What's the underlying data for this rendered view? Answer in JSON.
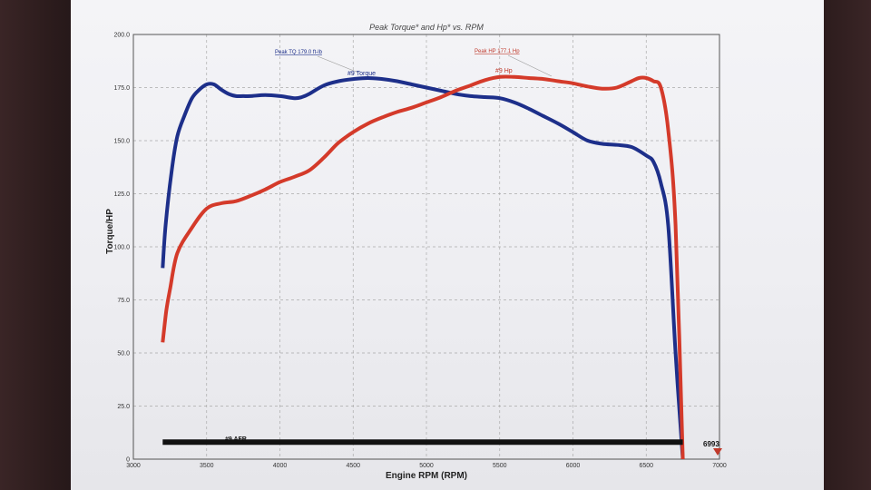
{
  "chart_data": {
    "type": "line",
    "title": "Peak Torque* and Hp* vs. RPM",
    "xlabel": "Engine RPM (RPM)",
    "ylabel": "Torque/HP",
    "xlim": [
      3000,
      7000
    ],
    "ylim": [
      0,
      200
    ],
    "x_ticks": [
      "3000",
      "3500",
      "4000",
      "4500",
      "5000",
      "5500",
      "6000",
      "6500",
      "7000"
    ],
    "y_ticks": [
      "0",
      "25.0",
      "50.0",
      "75.0",
      "100.0",
      "125.0",
      "150.0",
      "175.0",
      "200.0"
    ],
    "grid": true,
    "series": [
      {
        "name": "#9 Torque",
        "color": "#1d2f8a",
        "x": [
          3200,
          3220,
          3260,
          3300,
          3350,
          3400,
          3450,
          3500,
          3550,
          3600,
          3650,
          3700,
          3750,
          3800,
          3900,
          4000,
          4100,
          4150,
          4200,
          4300,
          4400,
          4500,
          4600,
          4700,
          4800,
          4900,
          5000,
          5100,
          5200,
          5300,
          5400,
          5500,
          5600,
          5700,
          5800,
          5900,
          6000,
          6100,
          6200,
          6300,
          6400,
          6500,
          6550,
          6600,
          6650,
          6700,
          6750
        ],
        "values": [
          90,
          110,
          135,
          152,
          162,
          170,
          174,
          176.5,
          176.5,
          174,
          172,
          171,
          171,
          171,
          171.5,
          171,
          170,
          170.5,
          172,
          176,
          178,
          179,
          179.5,
          179,
          178,
          176.5,
          175,
          173.5,
          172,
          171,
          170.5,
          170,
          168,
          165,
          161.5,
          158,
          154,
          150,
          148.5,
          148,
          147,
          143,
          140,
          130,
          110,
          50,
          0
        ]
      },
      {
        "name": "#9 Hp",
        "color": "#d43a2a",
        "x": [
          3200,
          3225,
          3250,
          3300,
          3400,
          3500,
          3600,
          3700,
          3800,
          3900,
          4000,
          4100,
          4200,
          4300,
          4400,
          4500,
          4600,
          4700,
          4800,
          4900,
          5000,
          5100,
          5200,
          5300,
          5400,
          5500,
          5600,
          5700,
          5800,
          5900,
          6000,
          6100,
          6200,
          6300,
          6400,
          6450,
          6500,
          6550,
          6600,
          6650,
          6700,
          6750
        ],
        "values": [
          55,
          70,
          80,
          97,
          109,
          118,
          120.5,
          121.5,
          124,
          127,
          130.5,
          133,
          136,
          142,
          149,
          154,
          158,
          161,
          163.5,
          165.5,
          168,
          170.5,
          173.5,
          176,
          178.5,
          180,
          180,
          179.5,
          179,
          178,
          177,
          175.5,
          174.5,
          175,
          178,
          179.5,
          179.5,
          178,
          175,
          155,
          110,
          0
        ]
      },
      {
        "name": "#9 AFR",
        "color": "#111111",
        "x": [
          3200,
          6750
        ],
        "values": [
          8,
          8
        ]
      }
    ],
    "annotations": {
      "peak_tq": "Peak TQ 179.0 ft-lb",
      "peak_hp": "Peak HP 177.1 Hp",
      "torque_label": "#9 Torque",
      "hp_label": "#9 Hp",
      "afr_label": "#9 AFR",
      "rpm_readout": "6993"
    }
  }
}
